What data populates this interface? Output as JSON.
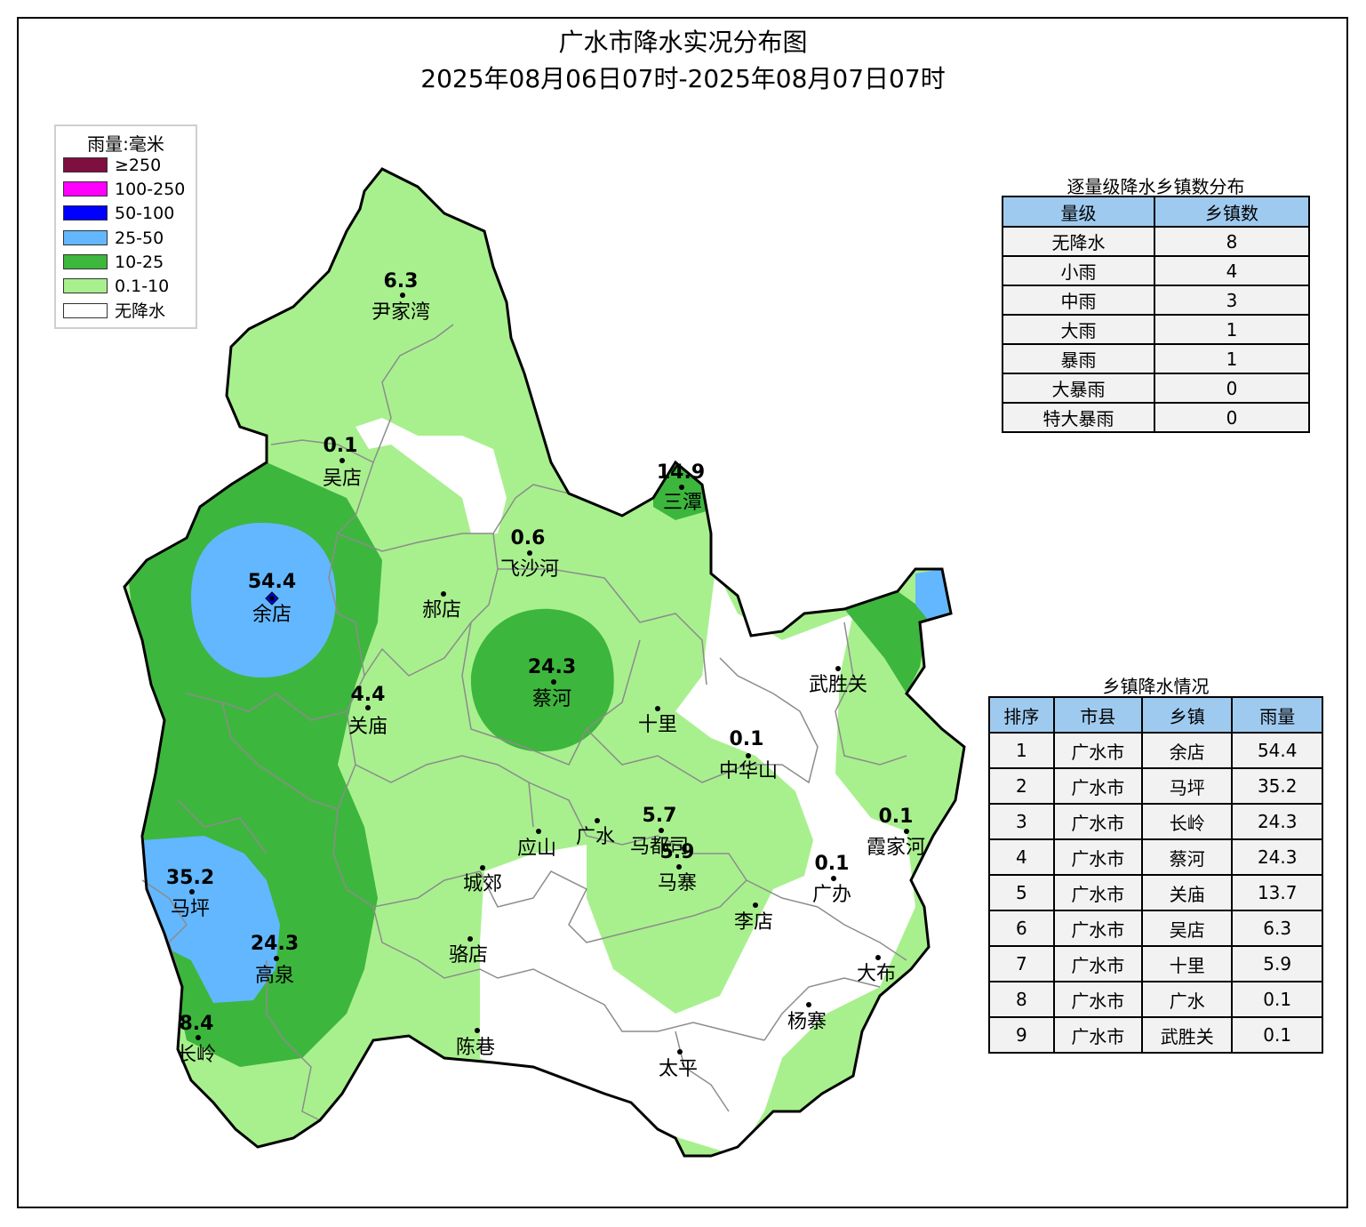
{
  "title": "广水市降水实况分布图",
  "subtitle": "2025年08月06日07时-2025年08月07日07时",
  "legend": {
    "title": "雨量:毫米",
    "items": [
      {
        "label": "≥250",
        "color": "#7f0f3f"
      },
      {
        "label": "100-250",
        "color": "#ff00ff"
      },
      {
        "label": "50-100",
        "color": "#0000ff"
      },
      {
        "label": "25-50",
        "color": "#63b7ff"
      },
      {
        "label": "10-25",
        "color": "#3db63d"
      },
      {
        "label": "0.1-10",
        "color": "#a8f08e"
      },
      {
        "label": "无降水",
        "color": "#ffffff"
      }
    ]
  },
  "grade_table": {
    "title": "逐量级降水乡镇数分布",
    "headers": [
      "量级",
      "乡镇数"
    ],
    "rows": [
      [
        "无降水",
        "8"
      ],
      [
        "小雨",
        "4"
      ],
      [
        "中雨",
        "3"
      ],
      [
        "大雨",
        "1"
      ],
      [
        "暴雨",
        "1"
      ],
      [
        "大暴雨",
        "0"
      ],
      [
        "特大暴雨",
        "0"
      ]
    ]
  },
  "town_table": {
    "title": "乡镇降水情况",
    "headers": [
      "排序",
      "市县",
      "乡镇",
      "雨量"
    ],
    "rows": [
      [
        "1",
        "广水市",
        "余店",
        "54.4"
      ],
      [
        "2",
        "广水市",
        "马坪",
        "35.2"
      ],
      [
        "3",
        "广水市",
        "长岭",
        "24.3"
      ],
      [
        "4",
        "广水市",
        "蔡河",
        "24.3"
      ],
      [
        "5",
        "广水市",
        "关庙",
        "13.7"
      ],
      [
        "6",
        "广水市",
        "吴店",
        "6.3"
      ],
      [
        "7",
        "广水市",
        "十里",
        "5.9"
      ],
      [
        "8",
        "广水市",
        "广水",
        "0.1"
      ],
      [
        "9",
        "广水市",
        "武胜关",
        "0.1"
      ]
    ]
  },
  "stations": [
    {
      "name": "尹家湾",
      "value": "6.3"
    },
    {
      "name": "吴店",
      "value": "0.1"
    },
    {
      "name": "三潭",
      "value": "14.9"
    },
    {
      "name": "飞沙河",
      "value": "0.6"
    },
    {
      "name": "余店",
      "value": "54.4"
    },
    {
      "name": "郝店",
      "value": ""
    },
    {
      "name": "蔡河",
      "value": "24.3"
    },
    {
      "name": "关庙",
      "value": "4.4"
    },
    {
      "name": "十里",
      "value": ""
    },
    {
      "name": "中华山",
      "value": "0.1"
    },
    {
      "name": "武胜关",
      "value": ""
    },
    {
      "name": "霞家河",
      "value": "0.1"
    },
    {
      "name": "应山",
      "value": ""
    },
    {
      "name": "广水",
      "value": ""
    },
    {
      "name": "马都司",
      "value": "5.7"
    },
    {
      "name": "马寨",
      "value": "5.9"
    },
    {
      "name": "广办",
      "value": "0.1"
    },
    {
      "name": "城郊",
      "value": ""
    },
    {
      "name": "马坪",
      "value": "35.2"
    },
    {
      "name": "高泉",
      "value": "24.3"
    },
    {
      "name": "骆店",
      "value": ""
    },
    {
      "name": "李店",
      "value": ""
    },
    {
      "name": "大布",
      "value": ""
    },
    {
      "name": "杨寨",
      "value": ""
    },
    {
      "name": "长岭",
      "value": "8.4"
    },
    {
      "name": "陈巷",
      "value": ""
    },
    {
      "name": "太平",
      "value": ""
    }
  ]
}
